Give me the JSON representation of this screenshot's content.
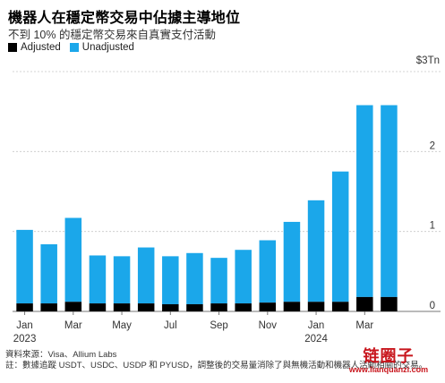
{
  "title": "機器人在穩定幣交易中佔據主導地位",
  "subtitle": "不到 10% 的穩定幣交易來自真實支付活動",
  "legend": {
    "adjusted_label": "Adjusted",
    "unadjusted_label": "Unadjusted",
    "adjusted_color": "#000000",
    "unadjusted_color": "#1ba7ea"
  },
  "source_line1": "資料來源：Visa、Allium Labs",
  "source_line2": "註：數據追蹤 USDT、USDC、USDP 和 PYUSD，調整後的交易量消除了與無機活動和機器人活動相關的交易。",
  "watermark": {
    "main": "链圈子",
    "url": "www.lianquanzi.com"
  },
  "chart_data": {
    "type": "bar",
    "stacked": true,
    "unit_label": "$3Tn",
    "categories": [
      "2023-01",
      "2023-02",
      "2023-03",
      "2023-04",
      "2023-05",
      "2023-06",
      "2023-07",
      "2023-08",
      "2023-09",
      "2023-10",
      "2023-11",
      "2023-12",
      "2024-01",
      "2024-02",
      "2024-03",
      "2024-04"
    ],
    "x_tick_labels": [
      {
        "index": 0,
        "label": "Jan",
        "year": "2023"
      },
      {
        "index": 2,
        "label": "Mar"
      },
      {
        "index": 4,
        "label": "May"
      },
      {
        "index": 6,
        "label": "Jul"
      },
      {
        "index": 8,
        "label": "Sep"
      },
      {
        "index": 10,
        "label": "Nov"
      },
      {
        "index": 12,
        "label": "Jan",
        "year": "2024"
      },
      {
        "index": 14,
        "label": "Mar"
      }
    ],
    "series": [
      {
        "name": "Adjusted",
        "color": "#000000",
        "values": [
          0.1,
          0.1,
          0.12,
          0.1,
          0.1,
          0.1,
          0.09,
          0.09,
          0.1,
          0.1,
          0.11,
          0.12,
          0.12,
          0.12,
          0.18,
          0.18
        ]
      },
      {
        "name": "Unadjusted",
        "color": "#1ba7ea",
        "values": [
          0.92,
          0.74,
          1.05,
          0.6,
          0.59,
          0.7,
          0.6,
          0.64,
          0.57,
          0.67,
          0.78,
          1.0,
          1.27,
          1.63,
          2.4,
          2.4
        ]
      }
    ],
    "y_ticks": [
      {
        "value": 0,
        "label": "0"
      },
      {
        "value": 1,
        "label": "1"
      },
      {
        "value": 2,
        "label": "2"
      },
      {
        "value": 3,
        "label": "$3Tn"
      }
    ],
    "ylim": [
      0,
      3
    ],
    "grid": "horizontal"
  }
}
